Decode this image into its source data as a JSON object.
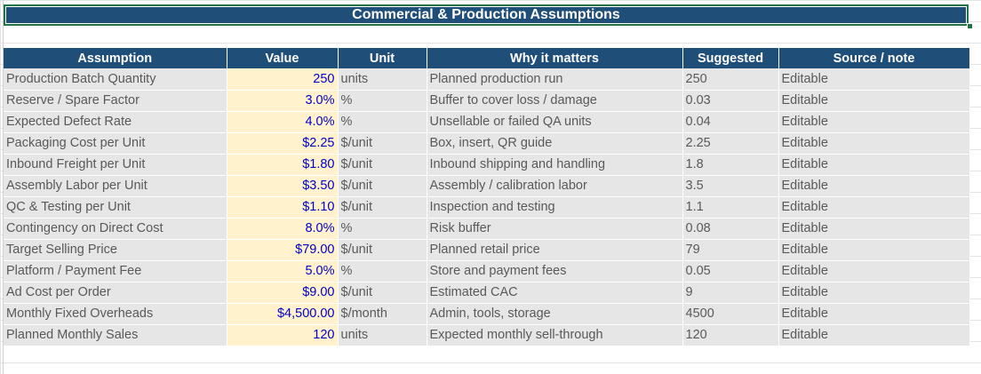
{
  "title": "Commercial & Production Assumptions",
  "columns": [
    "Assumption",
    "Value",
    "Unit",
    "Why it matters",
    "Suggested",
    "Source / note"
  ],
  "rows": [
    {
      "assumption": "Production Batch Quantity",
      "value": "250",
      "unit": "units",
      "why": "Planned production run",
      "suggested": "250",
      "source": "Editable"
    },
    {
      "assumption": "Reserve / Spare Factor",
      "value": "3.0%",
      "unit": "%",
      "why": "Buffer to cover loss / damage",
      "suggested": "0.03",
      "source": "Editable"
    },
    {
      "assumption": "Expected Defect Rate",
      "value": "4.0%",
      "unit": "%",
      "why": "Unsellable or failed QA units",
      "suggested": "0.04",
      "source": "Editable"
    },
    {
      "assumption": "Packaging Cost per Unit",
      "value": "$2.25",
      "unit": "$/unit",
      "why": "Box, insert, QR guide",
      "suggested": "2.25",
      "source": "Editable"
    },
    {
      "assumption": "Inbound Freight per Unit",
      "value": "$1.80",
      "unit": "$/unit",
      "why": "Inbound shipping and handling",
      "suggested": "1.8",
      "source": "Editable"
    },
    {
      "assumption": "Assembly Labor per Unit",
      "value": "$3.50",
      "unit": "$/unit",
      "why": "Assembly / calibration labor",
      "suggested": "3.5",
      "source": "Editable"
    },
    {
      "assumption": "QC & Testing per Unit",
      "value": "$1.10",
      "unit": "$/unit",
      "why": "Inspection and testing",
      "suggested": "1.1",
      "source": "Editable"
    },
    {
      "assumption": "Contingency on Direct Cost",
      "value": "8.0%",
      "unit": "%",
      "why": "Risk buffer",
      "suggested": "0.08",
      "source": "Editable"
    },
    {
      "assumption": "Target Selling Price",
      "value": "$79.00",
      "unit": "$/unit",
      "why": "Planned retail price",
      "suggested": "79",
      "source": "Editable"
    },
    {
      "assumption": "Platform / Payment Fee",
      "value": "5.0%",
      "unit": "%",
      "why": "Store and payment fees",
      "suggested": "0.05",
      "source": "Editable"
    },
    {
      "assumption": "Ad Cost per Order",
      "value": "$9.00",
      "unit": "$/unit",
      "why": "Estimated CAC",
      "suggested": "9",
      "source": "Editable"
    },
    {
      "assumption": "Monthly Fixed Overheads",
      "value": "$4,500.00",
      "unit": "$/month",
      "why": "Admin, tools, storage",
      "suggested": "4500",
      "source": "Editable"
    },
    {
      "assumption": "Planned Monthly Sales",
      "value": "120",
      "unit": "units",
      "why": "Expected monthly sell-through",
      "suggested": "120",
      "source": "Editable"
    }
  ]
}
